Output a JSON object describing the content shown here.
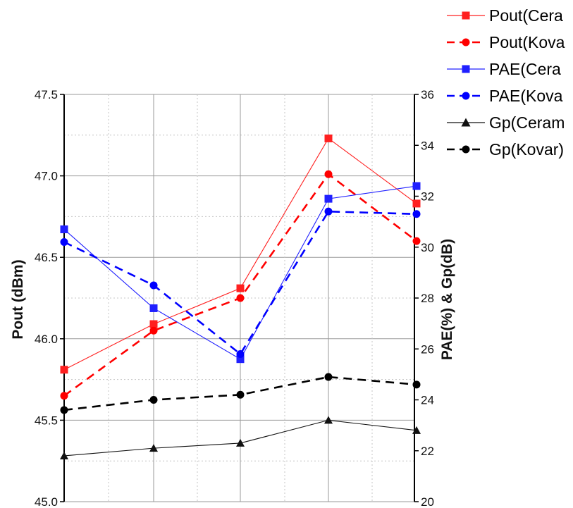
{
  "chart_data": {
    "type": "line",
    "x": [
      1,
      2,
      3,
      4,
      5
    ],
    "left_axis": {
      "label": "Pout (dBm)",
      "ylim": [
        45.0,
        47.5
      ],
      "ticks": [
        "45.0",
        "45.5",
        "46.0",
        "46.5",
        "47.0",
        "47.5"
      ],
      "tick_values": [
        45.0,
        45.5,
        46.0,
        46.5,
        47.0,
        47.5
      ]
    },
    "right_axis": {
      "label": "PAE(%) & Gp(dB)",
      "ylim": [
        20,
        36
      ],
      "ticks": [
        "20",
        "22",
        "24",
        "26",
        "28",
        "30",
        "32",
        "34",
        "36"
      ],
      "tick_values": [
        20,
        22,
        24,
        26,
        28,
        30,
        32,
        34,
        36
      ]
    },
    "grid": true,
    "legend_position": "top-right",
    "series": [
      {
        "name": "Pout(Cera",
        "axis": "left",
        "color": "#ff2020",
        "dash": false,
        "marker": "square",
        "values": [
          45.81,
          46.09,
          46.31,
          47.23,
          46.83
        ]
      },
      {
        "name": "Pout(Kova",
        "axis": "left",
        "color": "#ff0000",
        "dash": true,
        "marker": "circle",
        "values": [
          45.65,
          46.05,
          46.25,
          47.01,
          46.6
        ]
      },
      {
        "name": "PAE(Cera",
        "axis": "right",
        "color": "#2020ff",
        "dash": false,
        "marker": "square",
        "values": [
          30.7,
          27.6,
          25.6,
          31.9,
          32.4
        ]
      },
      {
        "name": "PAE(Kova",
        "axis": "right",
        "color": "#0000ff",
        "dash": true,
        "marker": "circle",
        "values": [
          30.2,
          28.5,
          25.8,
          31.4,
          31.3
        ]
      },
      {
        "name": "Gp(Ceram",
        "axis": "right",
        "color": "#111111",
        "dash": false,
        "marker": "triangle",
        "values": [
          21.8,
          22.1,
          22.3,
          23.2,
          22.8
        ]
      },
      {
        "name": "Gp(Kovar)",
        "axis": "right",
        "color": "#000000",
        "dash": true,
        "marker": "circle",
        "values": [
          23.6,
          24.0,
          24.2,
          24.9,
          24.6
        ]
      }
    ]
  }
}
